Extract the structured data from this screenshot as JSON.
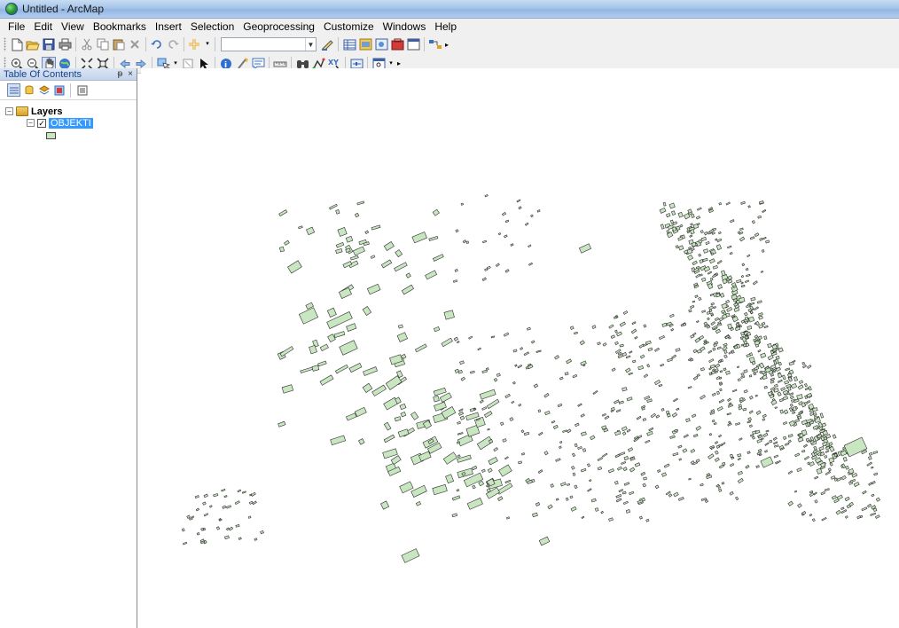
{
  "window": {
    "title": "Untitled - ArcMap"
  },
  "menu": [
    "File",
    "Edit",
    "View",
    "Bookmarks",
    "Insert",
    "Selection",
    "Geoprocessing",
    "Customize",
    "Windows",
    "Help"
  ],
  "toolbar_standard": {
    "icons": [
      "new-document-icon",
      "open-folder-icon",
      "save-icon",
      "print-icon",
      "cut-icon",
      "copy-icon",
      "paste-icon",
      "delete-icon",
      "undo-icon",
      "redo-icon",
      "add-data-icon"
    ],
    "scale_value": "",
    "right_icons": [
      "editor-toolbar-icon",
      "table-icon",
      "catalog-icon",
      "search-window-icon",
      "arctoolbox-icon",
      "python-icon",
      "model-builder-icon"
    ]
  },
  "toolbar_tools": {
    "icons": [
      "zoom-in-icon",
      "zoom-out-icon",
      "pan-icon",
      "full-extent-icon",
      "fixed-zoom-in-icon",
      "fixed-zoom-out-icon",
      "back-icon",
      "forward-icon",
      "select-features-icon",
      "clear-selection-icon",
      "select-elements-icon",
      "identify-icon",
      "hyperlink-icon",
      "html-popup-icon",
      "measure-icon",
      "find-icon",
      "find-route-icon",
      "go-to-xy-icon",
      "time-slider-icon",
      "viewer-window-icon"
    ]
  },
  "toc": {
    "title": "Table Of Contents",
    "pin": "ᵽ",
    "close": "×",
    "root_label": "Layers",
    "layer_label": "OBJEKTI",
    "layer_checked": true
  },
  "map": {
    "feature_fill": "#c8e6c0",
    "feature_stroke": "#2e2e2e",
    "background": "#ffffff"
  }
}
